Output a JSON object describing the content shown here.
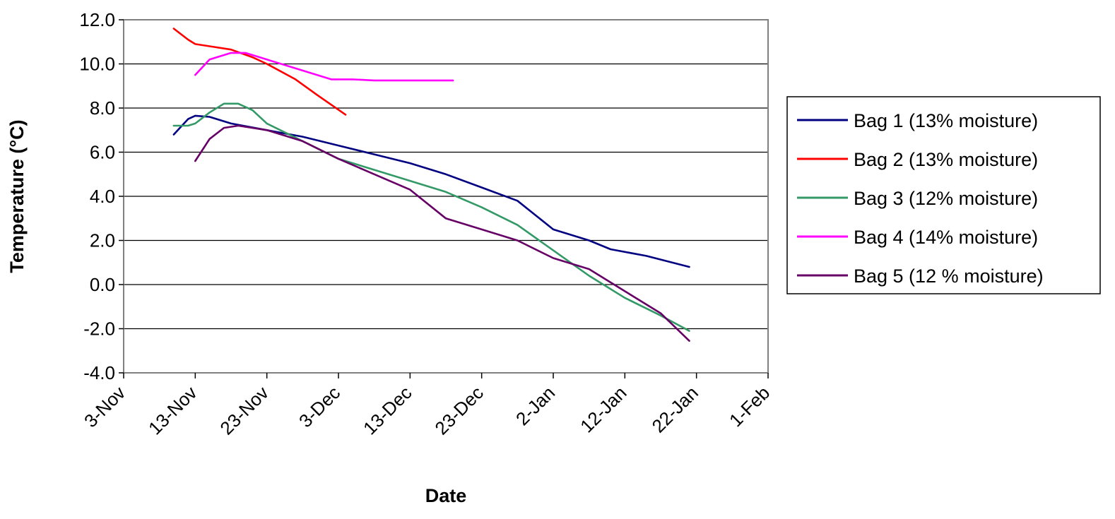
{
  "chart_data": {
    "type": "line",
    "title": "",
    "xlabel": "Date",
    "ylabel": "Temperature (°C)",
    "ylim": [
      -4.0,
      12.0
    ],
    "yticks": [
      "12.0",
      "10.0",
      "8.0",
      "6.0",
      "4.0",
      "2.0",
      "0.0",
      "-2.0",
      "-4.0"
    ],
    "xlim": [
      "3-Nov",
      "1-Feb"
    ],
    "xticks": [
      "3-Nov",
      "13-Nov",
      "23-Nov",
      "3-Dec",
      "13-Dec",
      "23-Dec",
      "2-Jan",
      "12-Jan",
      "22-Jan",
      "1-Feb"
    ],
    "grid": "horizontal",
    "legend_position": "right",
    "series": [
      {
        "name": "Bag 1 (13% moisture)",
        "color": "#000080",
        "points": [
          [
            "10-Nov",
            6.8
          ],
          [
            "12-Nov",
            7.5
          ],
          [
            "13-Nov",
            7.65
          ],
          [
            "15-Nov",
            7.6
          ],
          [
            "18-Nov",
            7.3
          ],
          [
            "23-Nov",
            7.0
          ],
          [
            "28-Nov",
            6.7
          ],
          [
            "3-Dec",
            6.3
          ],
          [
            "8-Dec",
            5.9
          ],
          [
            "13-Dec",
            5.5
          ],
          [
            "18-Dec",
            5.0
          ],
          [
            "23-Dec",
            4.4
          ],
          [
            "28-Dec",
            3.8
          ],
          [
            "2-Jan",
            2.5
          ],
          [
            "7-Jan",
            2.0
          ],
          [
            "10-Jan",
            1.6
          ],
          [
            "15-Jan",
            1.3
          ],
          [
            "21-Jan",
            0.8
          ]
        ]
      },
      {
        "name": "Bag 2 (13% moisture)",
        "color": "#FF0000",
        "points": [
          [
            "10-Nov",
            11.6
          ],
          [
            "12-Nov",
            11.1
          ],
          [
            "13-Nov",
            10.9
          ],
          [
            "15-Nov",
            10.8
          ],
          [
            "18-Nov",
            10.65
          ],
          [
            "21-Nov",
            10.3
          ],
          [
            "23-Nov",
            10.0
          ],
          [
            "27-Nov",
            9.3
          ],
          [
            "30-Nov",
            8.6
          ],
          [
            "4-Dec",
            7.7
          ]
        ]
      },
      {
        "name": "Bag 3 (12% moisture)",
        "color": "#339966",
        "points": [
          [
            "10-Nov",
            7.2
          ],
          [
            "12-Nov",
            7.2
          ],
          [
            "13-Nov",
            7.3
          ],
          [
            "15-Nov",
            7.8
          ],
          [
            "17-Nov",
            8.2
          ],
          [
            "19-Nov",
            8.2
          ],
          [
            "21-Nov",
            7.9
          ],
          [
            "23-Nov",
            7.3
          ],
          [
            "3-Dec",
            5.7
          ],
          [
            "13-Dec",
            4.7
          ],
          [
            "18-Dec",
            4.2
          ],
          [
            "23-Dec",
            3.5
          ],
          [
            "28-Dec",
            2.7
          ],
          [
            "7-Jan",
            0.4
          ],
          [
            "12-Jan",
            -0.6
          ],
          [
            "17-Jan",
            -1.4
          ],
          [
            "21-Jan",
            -2.1
          ]
        ]
      },
      {
        "name": "Bag 4 (14% moisture)",
        "color": "#FF00FF",
        "points": [
          [
            "13-Nov",
            9.5
          ],
          [
            "15-Nov",
            10.2
          ],
          [
            "18-Nov",
            10.5
          ],
          [
            "20-Nov",
            10.5
          ],
          [
            "23-Nov",
            10.2
          ],
          [
            "28-Nov",
            9.7
          ],
          [
            "2-Dec",
            9.3
          ],
          [
            "5-Dec",
            9.3
          ],
          [
            "8-Dec",
            9.25
          ],
          [
            "13-Dec",
            9.25
          ],
          [
            "18-Dec",
            9.25
          ],
          [
            "19-Dec",
            9.25
          ]
        ]
      },
      {
        "name": "Bag 5 (12 % moisture)",
        "color": "#660066",
        "points": [
          [
            "13-Nov",
            5.6
          ],
          [
            "15-Nov",
            6.6
          ],
          [
            "17-Nov",
            7.1
          ],
          [
            "19-Nov",
            7.2
          ],
          [
            "21-Nov",
            7.1
          ],
          [
            "23-Nov",
            7.0
          ],
          [
            "28-Nov",
            6.5
          ],
          [
            "3-Dec",
            5.7
          ],
          [
            "8-Dec",
            5.0
          ],
          [
            "13-Dec",
            4.3
          ],
          [
            "18-Dec",
            3.0
          ],
          [
            "23-Dec",
            2.5
          ],
          [
            "28-Dec",
            2.0
          ],
          [
            "2-Jan",
            1.2
          ],
          [
            "7-Jan",
            0.7
          ],
          [
            "12-Jan",
            -0.3
          ],
          [
            "17-Jan",
            -1.3
          ],
          [
            "21-Jan",
            -2.55
          ]
        ]
      }
    ]
  }
}
